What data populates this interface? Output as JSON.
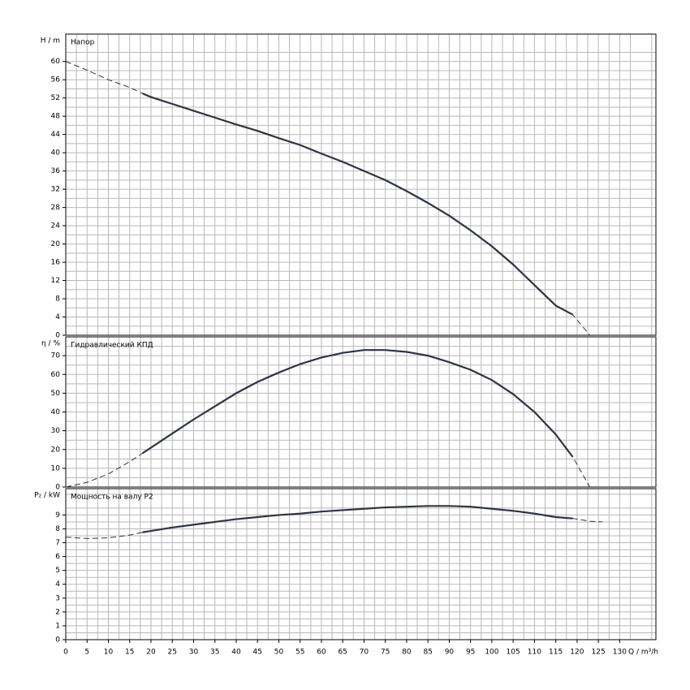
{
  "chart_data": [
    {
      "type": "line",
      "title": "Напор",
      "ylabel": "H / m",
      "color": "#2e3442",
      "x": [
        0,
        5,
        10,
        15,
        18,
        20,
        25,
        30,
        35,
        40,
        45,
        50,
        55,
        60,
        65,
        70,
        75,
        80,
        85,
        90,
        95,
        100,
        105,
        110,
        115,
        119,
        123,
        126
      ],
      "xlim": [
        0,
        138.5
      ],
      "xticks": [
        0,
        5,
        10,
        15,
        20,
        25,
        30,
        35,
        40,
        45,
        50,
        55,
        60,
        65,
        70,
        75,
        80,
        85,
        90,
        95,
        100,
        105,
        110,
        115,
        120,
        125,
        130
      ],
      "ylim": [
        0,
        66
      ],
      "yticks": [
        0,
        4,
        8,
        12,
        16,
        20,
        24,
        28,
        32,
        36,
        40,
        44,
        48,
        52,
        56,
        60
      ],
      "grid": true,
      "series": [
        {
          "style": "dashed",
          "values": [
            60,
            58.1,
            56,
            54.3,
            53,
            52.2,
            50.7,
            49.2,
            47.7,
            46.2,
            44.8,
            43.2,
            41.7,
            39.8,
            38,
            36,
            34,
            31.6,
            29,
            26.2,
            23,
            19.5,
            15.5,
            11,
            6.5,
            4.5,
            0,
            null
          ]
        },
        {
          "style": "solid",
          "values": [
            null,
            null,
            null,
            null,
            53,
            52.2,
            50.7,
            49.2,
            47.7,
            46.2,
            44.8,
            43.2,
            41.7,
            39.8,
            38,
            36,
            34,
            31.6,
            29,
            26.2,
            23,
            19.5,
            15.5,
            11,
            6.5,
            4.5,
            null,
            null
          ]
        }
      ]
    },
    {
      "type": "line",
      "title": "Гидравлический КПД",
      "ylabel": "η / %",
      "color": "#2e3442",
      "x": [
        0,
        5,
        10,
        15,
        18,
        20,
        25,
        30,
        35,
        40,
        45,
        50,
        55,
        60,
        65,
        70,
        75,
        80,
        85,
        90,
        95,
        100,
        105,
        110,
        115,
        119,
        123,
        126
      ],
      "xlim": [
        0,
        138.5
      ],
      "xticks": [
        0,
        5,
        10,
        15,
        20,
        25,
        30,
        35,
        40,
        45,
        50,
        55,
        60,
        65,
        70,
        75,
        80,
        85,
        90,
        95,
        100,
        105,
        110,
        115,
        120,
        125,
        130
      ],
      "ylim": [
        0,
        80
      ],
      "yticks": [
        0,
        10,
        20,
        30,
        40,
        50,
        60,
        70
      ],
      "grid": true,
      "series": [
        {
          "style": "dashed",
          "values": [
            0,
            2.5,
            7,
            13.5,
            18,
            21,
            28.5,
            36,
            43,
            50,
            56,
            61,
            65.5,
            69,
            71.5,
            73,
            73,
            72,
            70,
            66.5,
            62.5,
            57,
            49.5,
            40,
            28,
            16,
            0,
            null
          ]
        },
        {
          "style": "solid",
          "values": [
            null,
            null,
            null,
            null,
            18,
            21,
            28.5,
            36,
            43,
            50,
            56,
            61,
            65.5,
            69,
            71.5,
            73,
            73,
            72,
            70,
            66.5,
            62.5,
            57,
            49.5,
            40,
            28,
            16,
            null,
            null
          ]
        }
      ]
    },
    {
      "type": "line",
      "title": "Мощность на валу P2",
      "ylabel": "P₂ / kW",
      "xlabel": "Q / m³/h",
      "color": "#2e3442",
      "x": [
        0,
        5,
        10,
        15,
        18,
        20,
        25,
        30,
        35,
        40,
        45,
        50,
        55,
        60,
        65,
        70,
        75,
        80,
        85,
        90,
        95,
        100,
        105,
        110,
        115,
        119,
        123,
        126
      ],
      "xlim": [
        0,
        138.5
      ],
      "xticks": [
        0,
        5,
        10,
        15,
        20,
        25,
        30,
        35,
        40,
        45,
        50,
        55,
        60,
        65,
        70,
        75,
        80,
        85,
        90,
        95,
        100,
        105,
        110,
        115,
        120,
        125,
        130
      ],
      "ylim": [
        0,
        10.9
      ],
      "yticks": [
        0,
        1,
        2,
        3,
        4,
        5,
        6,
        7,
        8,
        9
      ],
      "grid": true,
      "series": [
        {
          "style": "dashed",
          "values": [
            7.4,
            7.3,
            7.35,
            7.55,
            7.75,
            7.85,
            8.1,
            8.3,
            8.5,
            8.7,
            8.85,
            9,
            9.1,
            9.25,
            9.35,
            9.45,
            9.55,
            9.6,
            9.65,
            9.65,
            9.6,
            9.45,
            9.3,
            9.1,
            8.85,
            8.75,
            8.55,
            8.5
          ]
        },
        {
          "style": "solid",
          "values": [
            null,
            null,
            null,
            null,
            7.75,
            7.85,
            8.1,
            8.3,
            8.5,
            8.7,
            8.85,
            9,
            9.1,
            9.25,
            9.35,
            9.45,
            9.55,
            9.6,
            9.65,
            9.65,
            9.6,
            9.45,
            9.3,
            9.1,
            8.85,
            8.75,
            null,
            null
          ]
        }
      ]
    }
  ]
}
